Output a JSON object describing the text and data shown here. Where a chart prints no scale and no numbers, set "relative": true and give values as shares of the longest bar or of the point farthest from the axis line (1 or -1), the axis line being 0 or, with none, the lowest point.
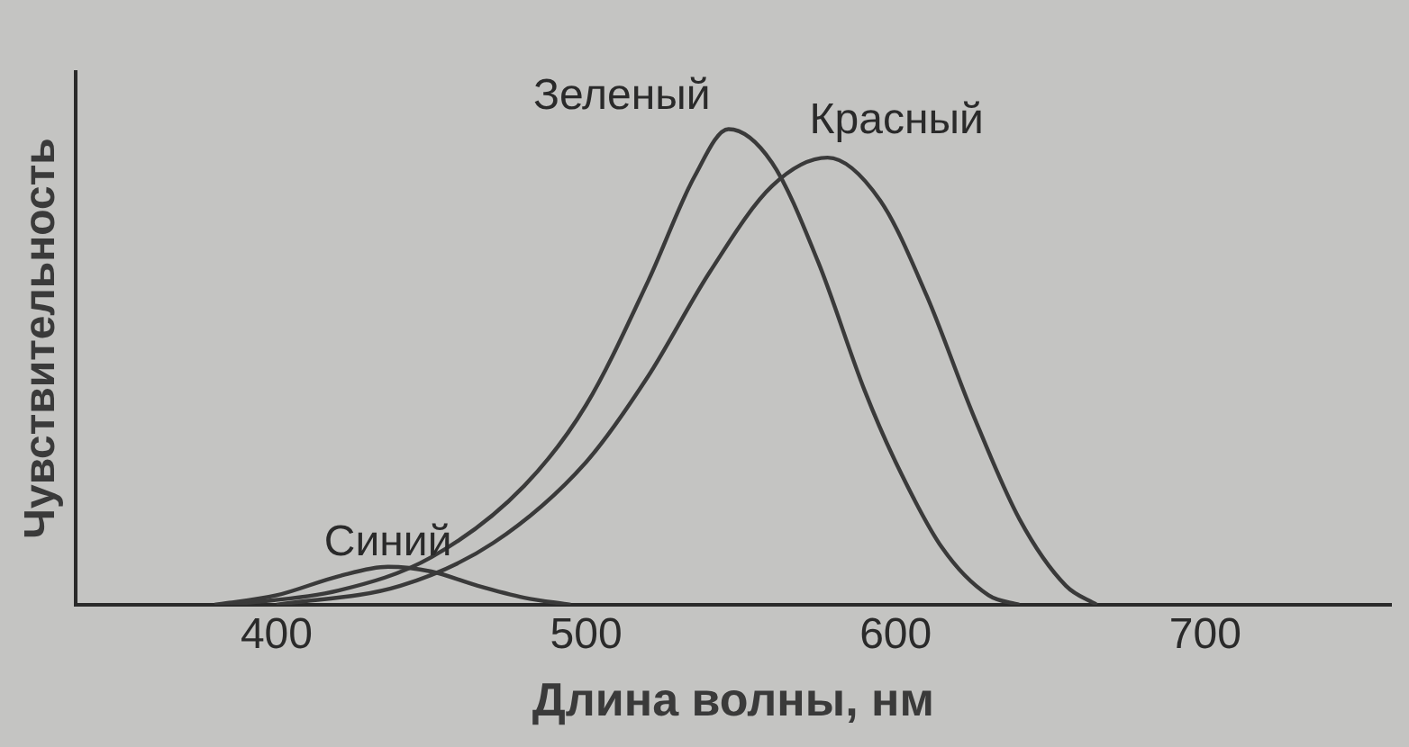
{
  "chart_data": {
    "type": "line",
    "xlabel": "Длина волны, нм",
    "ylabel": "Чувствительность",
    "relative": true,
    "xlim": [
      335,
      760
    ],
    "xticks": [
      400,
      500,
      600,
      700
    ],
    "grid": false,
    "legend": false,
    "marker": "none",
    "line_style": "solid",
    "series": [
      {
        "name": "Синий",
        "color": "#3a3a3a",
        "x": [
          380,
          400,
          420,
          436,
          450,
          465,
          480,
          495
        ],
        "values": [
          0,
          0.02,
          0.06,
          0.08,
          0.07,
          0.04,
          0.015,
          0
        ]
      },
      {
        "name": "Зеленый",
        "color": "#3a3a3a",
        "x": [
          385,
          420,
          450,
          480,
          500,
          520,
          535,
          546,
          560,
          575,
          590,
          600,
          615,
          630,
          640
        ],
        "values": [
          0,
          0.03,
          0.1,
          0.25,
          0.42,
          0.68,
          0.9,
          1,
          0.93,
          0.72,
          0.45,
          0.3,
          0.12,
          0.02,
          0
        ]
      },
      {
        "name": "Красный",
        "color": "#3a3a3a",
        "x": [
          400,
          440,
          470,
          500,
          520,
          540,
          560,
          578,
          595,
          610,
          625,
          640,
          655,
          665
        ],
        "values": [
          0,
          0.04,
          0.13,
          0.3,
          0.48,
          0.7,
          0.88,
          0.94,
          0.85,
          0.65,
          0.4,
          0.18,
          0.04,
          0
        ]
      }
    ]
  }
}
